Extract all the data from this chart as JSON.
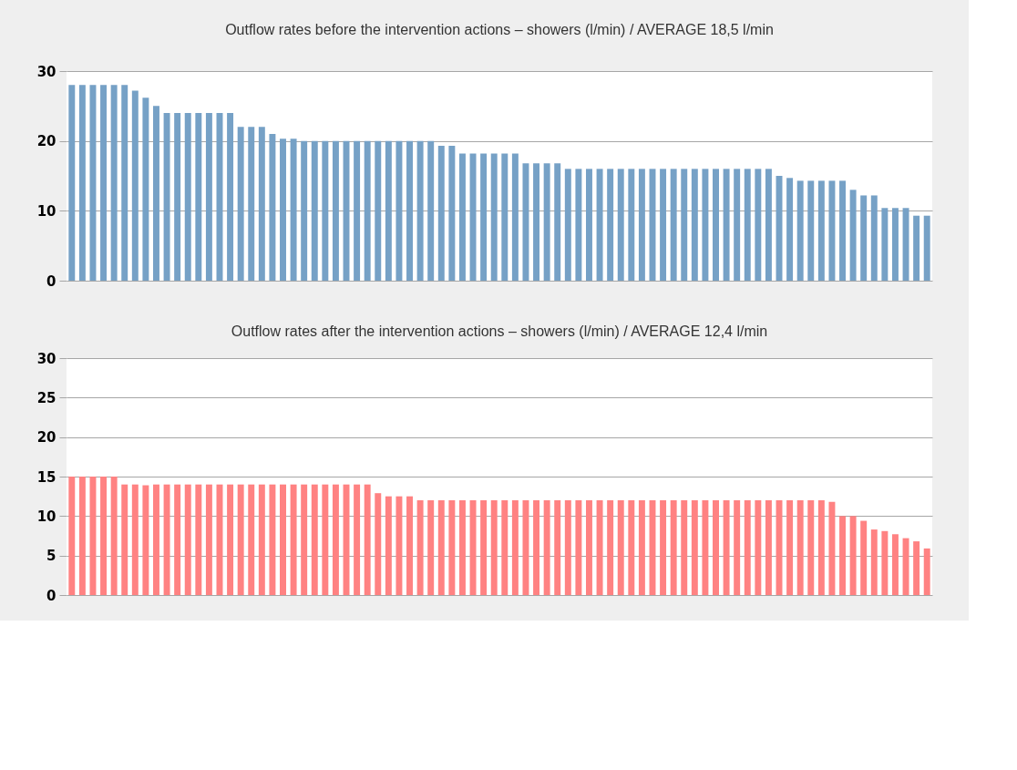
{
  "chart_data": [
    {
      "type": "bar",
      "title": "Outflow rates before the intervention actions – showers (l/min) / AVERAGE 18,5 l/min",
      "categories": [
        null,
        null,
        null,
        null,
        null,
        null,
        null,
        null,
        null,
        null,
        null,
        null,
        null,
        null,
        null,
        null,
        null,
        null,
        null,
        null,
        null,
        null,
        null,
        null,
        null,
        null,
        null,
        null,
        null,
        null,
        null,
        null,
        null,
        null,
        null,
        null,
        null,
        null,
        null,
        null,
        null,
        null,
        null,
        null,
        null,
        null,
        null,
        null,
        null,
        null,
        null,
        null,
        null,
        null,
        null,
        null,
        null,
        null,
        null,
        null,
        null,
        null,
        null,
        null,
        null,
        null,
        null,
        null,
        null,
        null,
        null,
        null,
        null,
        null,
        null,
        null,
        null,
        null,
        null,
        null,
        null,
        null
      ],
      "values": [
        28,
        28,
        28,
        28,
        28,
        28,
        27.2,
        26.2,
        25,
        24,
        24,
        24,
        24,
        24,
        24,
        24,
        22,
        22,
        22,
        21,
        20.3,
        20.3,
        20,
        20,
        20,
        20,
        20,
        20,
        20,
        20,
        20,
        20,
        20,
        20,
        20,
        19.3,
        19.3,
        18.2,
        18.2,
        18.2,
        18.2,
        18.2,
        18.2,
        16.8,
        16.8,
        16.8,
        16.8,
        16,
        16,
        16,
        16,
        16,
        16,
        16,
        16,
        16,
        16,
        16,
        16,
        16,
        16,
        16,
        16,
        16,
        16,
        16,
        16,
        15,
        14.7,
        14.3,
        14.3,
        14.3,
        14.3,
        14.3,
        13,
        12.2,
        12.2,
        10.4,
        10.4,
        10.4,
        9.3,
        9.3
      ],
      "color": "#76a1c6",
      "ylim": [
        0,
        30
      ],
      "yticks": [
        0,
        10,
        20,
        30
      ],
      "grid": "y",
      "tick_labels": "y"
    },
    {
      "type": "bar",
      "title": "Outflow rates after the intervention actions – showers (l/min) / AVERAGE 12,4 l/min",
      "categories": [
        null,
        null,
        null,
        null,
        null,
        null,
        null,
        null,
        null,
        null,
        null,
        null,
        null,
        null,
        null,
        null,
        null,
        null,
        null,
        null,
        null,
        null,
        null,
        null,
        null,
        null,
        null,
        null,
        null,
        null,
        null,
        null,
        null,
        null,
        null,
        null,
        null,
        null,
        null,
        null,
        null,
        null,
        null,
        null,
        null,
        null,
        null,
        null,
        null,
        null,
        null,
        null,
        null,
        null,
        null,
        null,
        null,
        null,
        null,
        null,
        null,
        null,
        null,
        null,
        null,
        null,
        null,
        null,
        null,
        null,
        null,
        null,
        null,
        null,
        null,
        null,
        null,
        null,
        null,
        null,
        null,
        null
      ],
      "values": [
        15,
        15,
        15,
        15,
        15,
        14,
        14,
        13.9,
        14,
        14,
        14,
        14,
        14,
        14,
        14,
        14,
        14,
        14,
        14,
        14,
        14,
        14,
        14,
        14,
        14,
        14,
        14,
        14,
        14,
        12.9,
        12.5,
        12.5,
        12.5,
        12,
        12,
        12,
        12,
        12,
        12,
        12,
        12,
        12,
        12,
        12,
        12,
        12,
        12,
        12,
        12,
        12,
        12,
        12,
        12,
        12,
        12,
        12,
        12,
        12,
        12,
        12,
        12,
        12,
        12,
        12,
        12,
        12,
        12,
        12,
        12,
        12,
        12,
        12,
        11.8,
        10,
        10,
        9.4,
        8.3,
        8.1,
        7.7,
        7.2,
        6.8,
        5.9
      ],
      "color": "#ff8282",
      "ylim": [
        0,
        30
      ],
      "yticks": [
        0,
        5,
        10,
        15,
        20,
        25,
        30
      ],
      "grid": "y",
      "tick_labels": "y"
    }
  ]
}
